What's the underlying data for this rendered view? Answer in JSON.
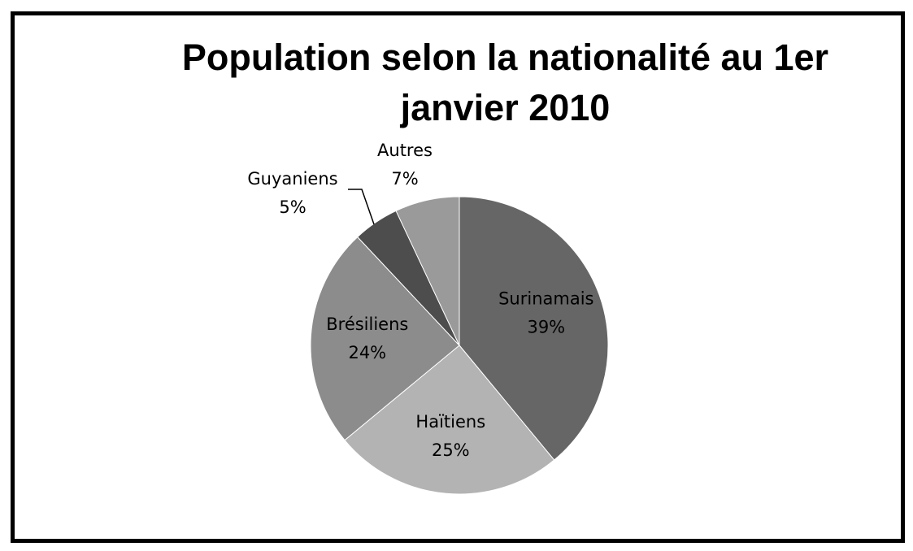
{
  "chart_data": {
    "type": "pie",
    "title_lines": [
      "Population selon la nationalité au 1er",
      "janvier 2010"
    ],
    "slices": [
      {
        "label": "Surinamais",
        "value": 39,
        "pct_label": "39%",
        "color": "#666666"
      },
      {
        "label": "Haïtiens",
        "value": 25,
        "pct_label": "25%",
        "color": "#b3b3b3"
      },
      {
        "label": "Brésiliens",
        "value": 24,
        "pct_label": "24%",
        "color": "#8c8c8c"
      },
      {
        "label": "Guyaniens",
        "value": 5,
        "pct_label": "5%",
        "color": "#4d4d4d"
      },
      {
        "label": "Autres",
        "value": 7,
        "pct_label": "7%",
        "color": "#9a9a9a"
      }
    ]
  }
}
